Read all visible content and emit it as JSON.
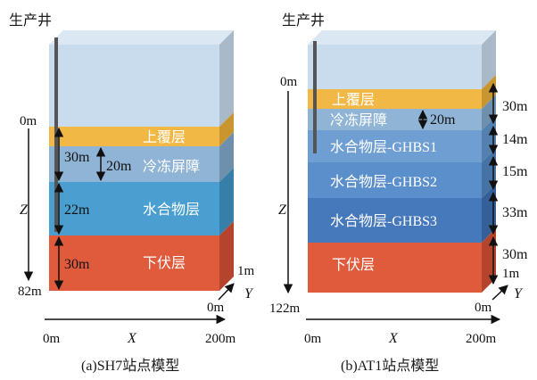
{
  "colors": {
    "overburden": "#f2b846",
    "permafrost_barrier": "#8fb4d6",
    "hydrate_sh7": "#4a9fd0",
    "ghbs1": "#6f9fd2",
    "ghbs2": "#5b8fcb",
    "ghbs3": "#4679bb",
    "underburden": "#e05b3c",
    "sky": "#c9dcee",
    "side_dark": "#7f7f7f",
    "well": "#555555"
  },
  "panel_a": {
    "well_label": "生产井",
    "depth_top": "0m",
    "depth_bottom": "82m",
    "z_axis": "Z",
    "x_start": "0m",
    "x_axis": "X",
    "x_end": "200m",
    "y_start": "0m",
    "y_axis": "Y",
    "y_end": "1m",
    "caption": "(a)SH7站点模型",
    "layers": {
      "overburden": "上覆层",
      "permafrost_barrier": "冷冻屏障",
      "hydrate": "水合物层",
      "underburden": "下伏层"
    },
    "thickness": {
      "outer_upper": "30m",
      "inner_barrier": "20m",
      "hydrate": "22m",
      "underburden": "30m"
    }
  },
  "panel_b": {
    "well_label": "生产井",
    "depth_top": "0m",
    "depth_bottom": "122m",
    "z_axis": "Z",
    "x_start": "0m",
    "x_axis": "X",
    "x_end": "200m",
    "y_start": "0m",
    "y_axis": "Y",
    "y_end": "1m",
    "caption": "(b)AT1站点模型",
    "layers": {
      "overburden": "上覆层",
      "permafrost_barrier": "冷冻屏障",
      "ghbs1": "水合物层-GHBS1",
      "ghbs2": "水合物层-GHBS2",
      "ghbs3": "水合物层-GHBS3",
      "underburden": "下伏层"
    },
    "thickness": {
      "overburden": "30m",
      "inner_barrier": "20m",
      "ghbs1": "14m",
      "ghbs2": "15m",
      "ghbs3": "33m",
      "underburden": "30m"
    }
  }
}
